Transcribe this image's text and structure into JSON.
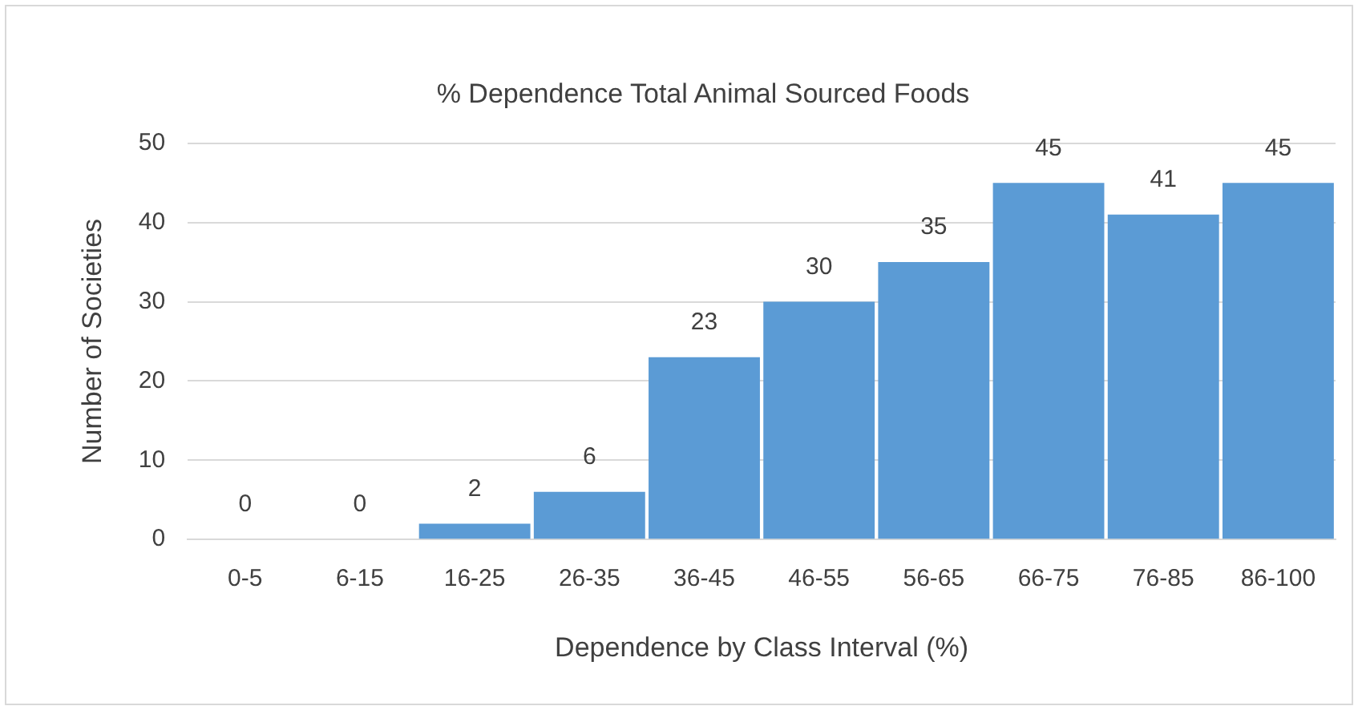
{
  "chart_data": {
    "type": "bar",
    "title": "% Dependence Total Animal Sourced Foods",
    "xlabel": "Dependence by Class Interval (%)",
    "ylabel": "Number of Societies",
    "categories": [
      "0-5",
      "6-15",
      "16-25",
      "26-35",
      "36-45",
      "46-55",
      "56-65",
      "66-75",
      "76-85",
      "86-100"
    ],
    "values": [
      0,
      0,
      2,
      6,
      23,
      30,
      35,
      45,
      41,
      45
    ],
    "color": "#5b9bd5",
    "ylim": [
      0,
      50
    ],
    "yticks": [
      0,
      10,
      20,
      30,
      40,
      50
    ],
    "grid": "y",
    "data_labels": true,
    "legend": false
  }
}
